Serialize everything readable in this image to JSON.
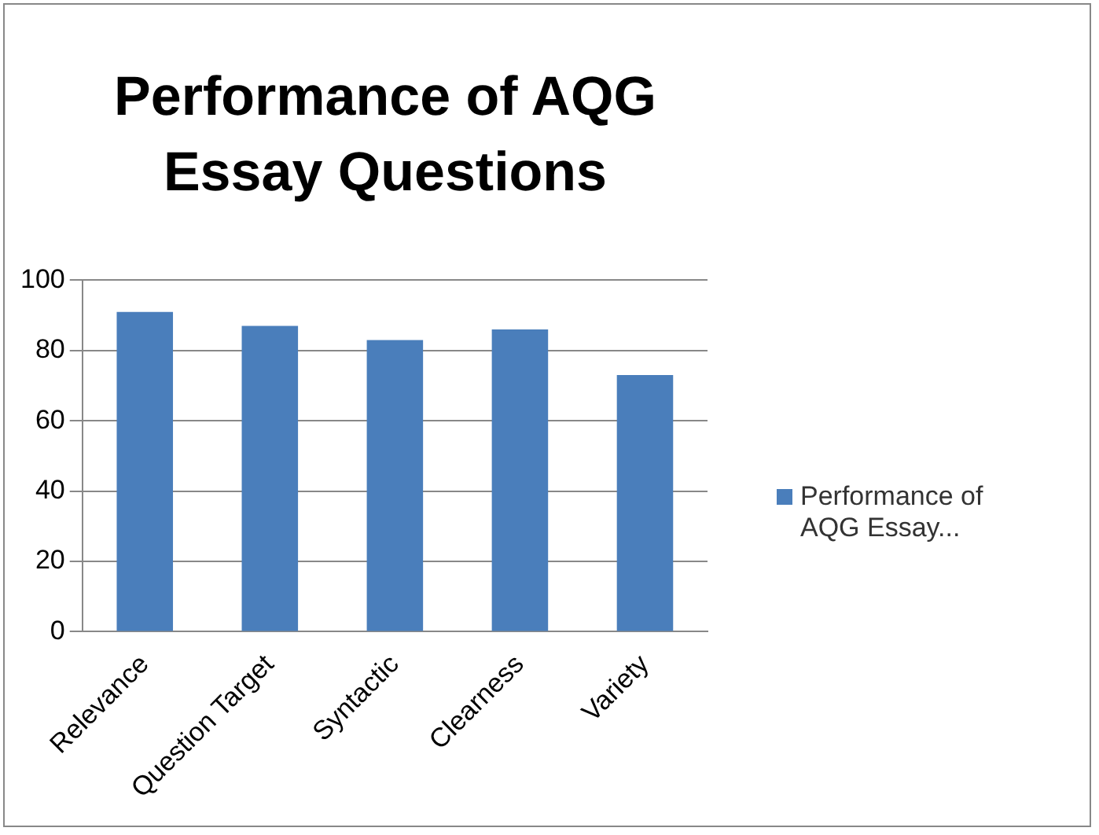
{
  "chart_data": {
    "type": "bar",
    "title": "Performance of AQG Essay Questions",
    "categories": [
      "Relevance",
      "Question Target",
      "Syntactic",
      "Clearness",
      "Variety"
    ],
    "series": [
      {
        "name": "Performance of AQG Essay...",
        "color": "#4a7ebb",
        "values": [
          91,
          87,
          83,
          86,
          73
        ]
      }
    ],
    "ylim": [
      0,
      100
    ],
    "yticks": [
      0,
      20,
      40,
      60,
      80,
      100
    ],
    "grid": "y",
    "legend": "right"
  }
}
